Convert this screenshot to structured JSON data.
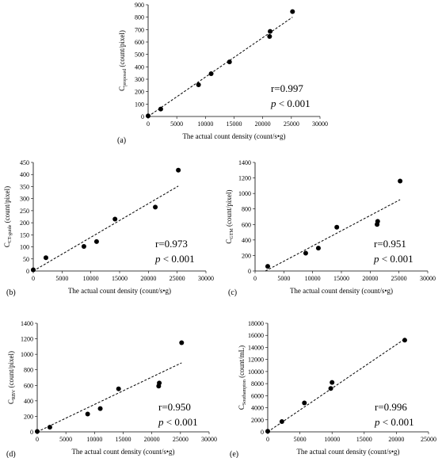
{
  "chart_data": [
    {
      "type": "scatter",
      "panel_label": "(a)",
      "xlabel": "The actual count density (count/s•g)",
      "ylabel_main": "C",
      "ylabel_sub": "proposed",
      "ylabel_unit": " (count/pixel)",
      "xlim": [
        0,
        30000
      ],
      "ylim": [
        0,
        900
      ],
      "xticks": [
        "0",
        "5000",
        "10000",
        "15000",
        "20000",
        "25000",
        "30000"
      ],
      "yticks": [
        "0",
        "100",
        "200",
        "300",
        "400",
        "500",
        "600",
        "700",
        "800",
        "900"
      ],
      "x": [
        0,
        2200,
        8800,
        11000,
        14200,
        21200,
        21300,
        25200
      ],
      "y": [
        5,
        60,
        255,
        345,
        440,
        645,
        685,
        845
      ],
      "trendline": {
        "x": [
          0,
          25200
        ],
        "y": [
          0,
          800
        ]
      },
      "r_text": "r=0.997",
      "p_prefix": "p",
      "p_text": " < 0.001"
    },
    {
      "type": "scatter",
      "panel_label": "(b)",
      "xlabel": "The actual count density (count/s•g)",
      "ylabel_main": "C",
      "ylabel_sub": "CT-guide",
      "ylabel_unit": " (count/pixel)",
      "xlim": [
        0,
        30000
      ],
      "ylim": [
        0,
        450
      ],
      "xticks": [
        "0",
        "5000",
        "10000",
        "15000",
        "20000",
        "25000",
        "30000"
      ],
      "yticks": [
        "0",
        "50",
        "100",
        "150",
        "200",
        "250",
        "300",
        "350",
        "400",
        "450"
      ],
      "x": [
        0,
        2200,
        8800,
        11000,
        14200,
        21200,
        25200
      ],
      "y": [
        5,
        55,
        102,
        122,
        215,
        265,
        418
      ],
      "trendline": {
        "x": [
          0,
          25200
        ],
        "y": [
          0,
          352
        ]
      },
      "r_text": "r=0.973",
      "p_prefix": "p",
      "p_text": " < 0.001"
    },
    {
      "type": "scatter",
      "panel_label": "(c)",
      "xlabel": "The actual count density (count/s•g)",
      "ylabel_main": "C",
      "ylabel_sub": "GTM",
      "ylabel_unit": " (count/pixel)",
      "xlim": [
        0,
        30000
      ],
      "ylim": [
        0,
        1400
      ],
      "xticks": [
        "0",
        "5000",
        "10000",
        "15000",
        "20000",
        "25000",
        "30000"
      ],
      "yticks": [
        "0",
        "200",
        "400",
        "600",
        "800",
        "1000",
        "1200",
        "1400"
      ],
      "x": [
        2200,
        8800,
        11000,
        14200,
        21200,
        21300,
        25200
      ],
      "y": [
        60,
        230,
        295,
        565,
        600,
        640,
        1160
      ],
      "trendline": {
        "x": [
          1800,
          25200
        ],
        "y": [
          0,
          920
        ]
      },
      "r_text": "r=0.951",
      "p_prefix": "p",
      "p_text": " < 0.001"
    },
    {
      "type": "scatter",
      "panel_label": "(d)",
      "xlabel": "The actual count density (count/s•g)",
      "ylabel_main": "C",
      "ylabel_sub": "RBV",
      "ylabel_unit": " (count/pixel)",
      "xlim": [
        0,
        30000
      ],
      "ylim": [
        0,
        1400
      ],
      "xticks": [
        "0",
        "5000",
        "10000",
        "15000",
        "20000",
        "25000",
        "30000"
      ],
      "yticks": [
        "0",
        "200",
        "400",
        "600",
        "800",
        "1000",
        "1200",
        "1400"
      ],
      "x": [
        0,
        2200,
        8800,
        11000,
        14200,
        21200,
        21300,
        25200
      ],
      "y": [
        5,
        60,
        230,
        300,
        555,
        590,
        630,
        1150
      ],
      "trendline": {
        "x": [
          0,
          25200
        ],
        "y": [
          0,
          890
        ]
      },
      "r_text": "r=0.950",
      "p_prefix": "p",
      "p_text": " < 0.001"
    },
    {
      "type": "scatter",
      "panel_label": "(e)",
      "xlabel": "The actual count density (count/s•g)",
      "ylabel_main": "C",
      "ylabel_sub": "Southampton",
      "ylabel_unit": " (count/mL)",
      "xlim": [
        0,
        25000
      ],
      "ylim": [
        0,
        18000
      ],
      "xticks": [
        "0",
        "5000",
        "10000",
        "15000",
        "20000",
        "25000"
      ],
      "yticks": [
        "0",
        "2000",
        "4000",
        "6000",
        "8000",
        "10000",
        "12000",
        "14000",
        "16000",
        "18000"
      ],
      "x": [
        0,
        2200,
        5700,
        9800,
        10000,
        21300
      ],
      "y": [
        100,
        1700,
        4800,
        7200,
        8200,
        15200
      ],
      "trendline": {
        "x": [
          0,
          21300
        ],
        "y": [
          0,
          15400
        ]
      },
      "r_text": "r=0.996",
      "p_prefix": "p",
      "p_text": " < 0.001"
    }
  ]
}
